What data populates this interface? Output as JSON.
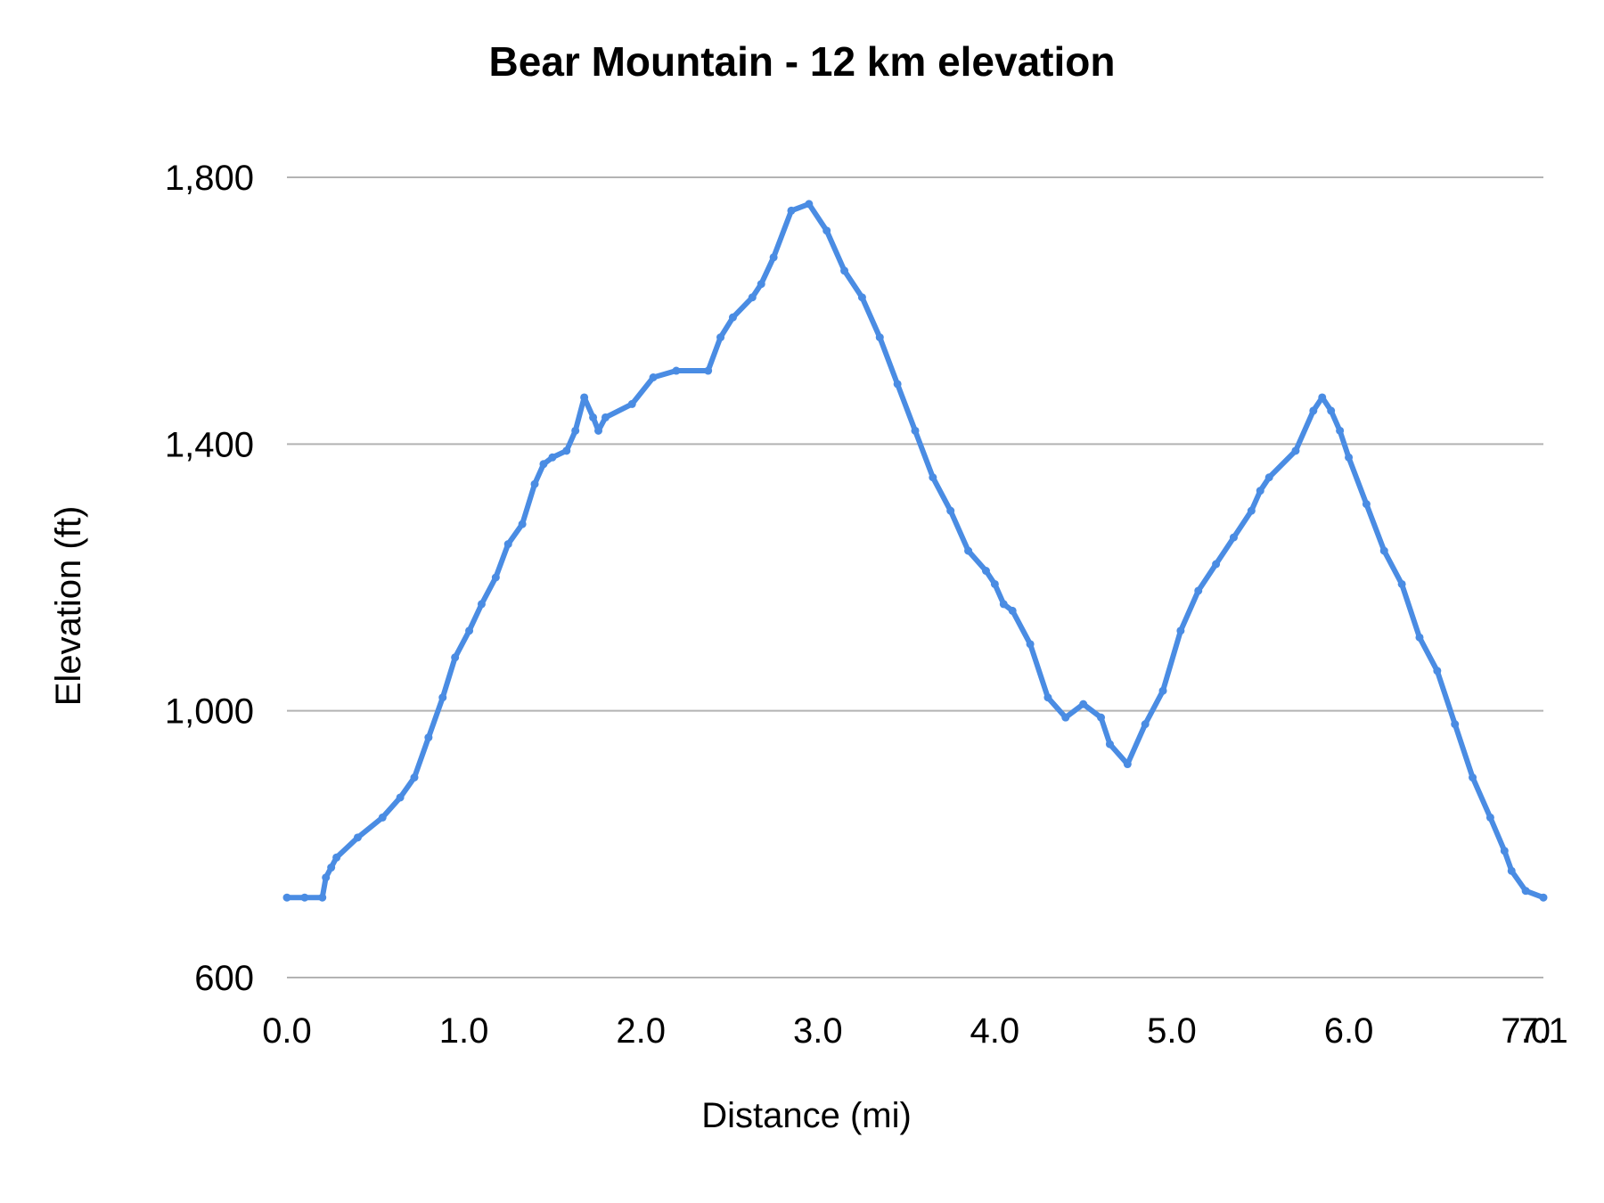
{
  "chart_data": {
    "type": "line",
    "title": "Bear Mountain  - 12 km elevation",
    "xlabel": "Distance (mi)",
    "ylabel": "Elevation (ft)",
    "xlim": [
      0,
      7.1
    ],
    "ylim": [
      600,
      1800
    ],
    "x_ticks": [
      "0.0",
      "1.0",
      "2.0",
      "3.0",
      "4.0",
      "5.0",
      "6.0",
      "7.0",
      "7.1"
    ],
    "x_tick_values": [
      0,
      1,
      2,
      3,
      4,
      5,
      6,
      7,
      7.1
    ],
    "y_ticks": [
      "600",
      "1,000",
      "1,400",
      "1,800"
    ],
    "y_tick_values": [
      600,
      1000,
      1400,
      1800
    ],
    "grid": "horizontal",
    "legend": "none",
    "series": [
      {
        "color": "#4A8CE3",
        "x": [
          0.0,
          0.1,
          0.2,
          0.22,
          0.25,
          0.28,
          0.4,
          0.54,
          0.64,
          0.72,
          0.8,
          0.88,
          0.95,
          1.03,
          1.1,
          1.18,
          1.25,
          1.33,
          1.4,
          1.45,
          1.5,
          1.58,
          1.63,
          1.68,
          1.73,
          1.76,
          1.8,
          1.95,
          2.07,
          2.2,
          2.38,
          2.45,
          2.52,
          2.63,
          2.68,
          2.75,
          2.85,
          2.95,
          3.05,
          3.15,
          3.25,
          3.35,
          3.45,
          3.55,
          3.65,
          3.75,
          3.85,
          3.95,
          4.0,
          4.05,
          4.1,
          4.2,
          4.3,
          4.4,
          4.5,
          4.6,
          4.65,
          4.75,
          4.85,
          4.95,
          5.05,
          5.15,
          5.25,
          5.35,
          5.45,
          5.5,
          5.55,
          5.7,
          5.8,
          5.85,
          5.9,
          5.95,
          6.0,
          6.1,
          6.2,
          6.3,
          6.4,
          6.5,
          6.6,
          6.7,
          6.8,
          6.88,
          6.92,
          7.0,
          7.1
        ],
        "y": [
          720,
          720,
          720,
          750,
          765,
          780,
          810,
          840,
          870,
          900,
          960,
          1020,
          1080,
          1120,
          1160,
          1200,
          1250,
          1280,
          1340,
          1370,
          1380,
          1390,
          1420,
          1470,
          1440,
          1420,
          1440,
          1460,
          1500,
          1510,
          1510,
          1560,
          1590,
          1620,
          1640,
          1680,
          1750,
          1760,
          1720,
          1660,
          1620,
          1560,
          1490,
          1420,
          1350,
          1300,
          1240,
          1210,
          1190,
          1160,
          1150,
          1100,
          1020,
          990,
          1010,
          990,
          950,
          920,
          980,
          1030,
          1120,
          1180,
          1220,
          1260,
          1300,
          1330,
          1350,
          1390,
          1450,
          1470,
          1450,
          1420,
          1380,
          1310,
          1240,
          1190,
          1110,
          1060,
          980,
          900,
          840,
          790,
          760,
          730,
          720
        ]
      }
    ]
  }
}
